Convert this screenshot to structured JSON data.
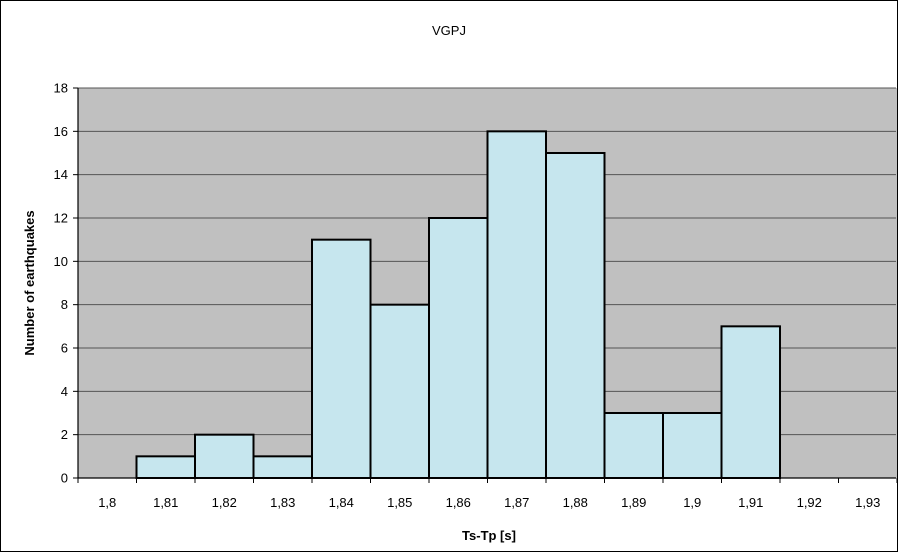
{
  "chart_data": {
    "type": "bar",
    "title": "VGPJ",
    "xlabel": "Ts-Tp [s]",
    "ylabel": "Number of earthquakes",
    "categories": [
      "1,8",
      "1,81",
      "1,82",
      "1,83",
      "1,84",
      "1,85",
      "1,86",
      "1,87",
      "1,88",
      "1,89",
      "1,9",
      "1,91",
      "1,92",
      "1,93"
    ],
    "values": [
      0,
      1,
      2,
      1,
      11,
      8,
      12,
      16,
      15,
      3,
      3,
      7,
      0,
      0
    ],
    "ylim": [
      0,
      18
    ],
    "yticks": [
      "0",
      "2",
      "4",
      "6",
      "8",
      "10",
      "12",
      "14",
      "16",
      "18"
    ],
    "grid": true,
    "legend": "none",
    "colors": {
      "bar_fill": "#c6e6ee",
      "bar_stroke": "#000000",
      "plot_background": "#c0c0c0",
      "gridline": "#555555"
    }
  }
}
